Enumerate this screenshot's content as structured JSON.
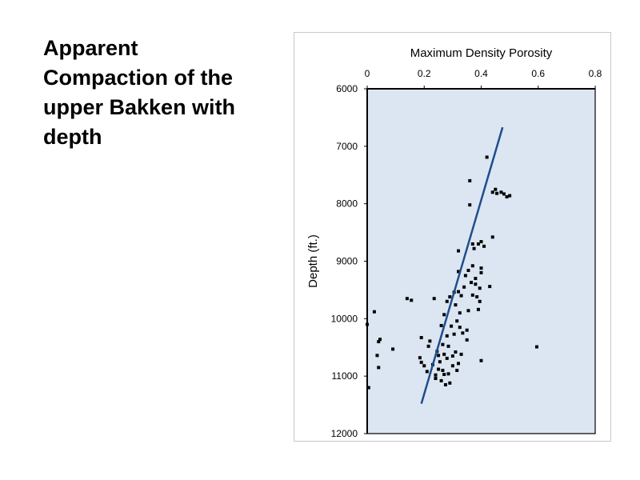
{
  "slide": {
    "title": "Apparent Compaction of the upper Bakken with depth"
  },
  "chart_data": {
    "type": "scatter",
    "title": "",
    "xlabel": "Maximum Density Porosity",
    "ylabel": "Depth (ft.)",
    "x_axis_position": "top",
    "y_axis_reversed": true,
    "xlim": [
      0,
      0.8
    ],
    "ylim": [
      6000,
      12000
    ],
    "x_ticks": [
      0,
      0.2,
      0.4,
      0.6,
      0.8
    ],
    "y_ticks": [
      6000,
      7000,
      8000,
      9000,
      10000,
      11000,
      12000
    ],
    "grid": false,
    "legend": "none",
    "colors": {
      "plot_background": "#dce6f2",
      "points": "#000000",
      "trend_line": "#1f4e8c"
    },
    "series": [
      {
        "kind": "points",
        "points": [
          [
            0.0,
            10100
          ],
          [
            0.005,
            11200
          ],
          [
            0.025,
            9880
          ],
          [
            0.035,
            10640
          ],
          [
            0.04,
            10400
          ],
          [
            0.04,
            10850
          ],
          [
            0.045,
            10360
          ],
          [
            0.09,
            10530
          ],
          [
            0.14,
            9650
          ],
          [
            0.155,
            9680
          ],
          [
            0.185,
            10680
          ],
          [
            0.19,
            10330
          ],
          [
            0.19,
            10760
          ],
          [
            0.2,
            10820
          ],
          [
            0.21,
            10920
          ],
          [
            0.215,
            10480
          ],
          [
            0.22,
            10390
          ],
          [
            0.23,
            10800
          ],
          [
            0.235,
            9650
          ],
          [
            0.24,
            10980
          ],
          [
            0.24,
            11040
          ],
          [
            0.245,
            10570
          ],
          [
            0.25,
            10640
          ],
          [
            0.25,
            10880
          ],
          [
            0.255,
            10750
          ],
          [
            0.26,
            10120
          ],
          [
            0.26,
            11080
          ],
          [
            0.265,
            10450
          ],
          [
            0.265,
            10900
          ],
          [
            0.27,
            9930
          ],
          [
            0.27,
            10620
          ],
          [
            0.27,
            10970
          ],
          [
            0.275,
            11150
          ],
          [
            0.28,
            9700
          ],
          [
            0.28,
            10300
          ],
          [
            0.28,
            10690
          ],
          [
            0.285,
            10480
          ],
          [
            0.285,
            10960
          ],
          [
            0.29,
            11120
          ],
          [
            0.29,
            9620
          ],
          [
            0.295,
            10130
          ],
          [
            0.3,
            10820
          ],
          [
            0.3,
            10650
          ],
          [
            0.305,
            9540
          ],
          [
            0.305,
            10270
          ],
          [
            0.31,
            10580
          ],
          [
            0.31,
            9760
          ],
          [
            0.315,
            10040
          ],
          [
            0.315,
            10900
          ],
          [
            0.32,
            9530
          ],
          [
            0.32,
            10780
          ],
          [
            0.32,
            8820
          ],
          [
            0.32,
            9180
          ],
          [
            0.325,
            9900
          ],
          [
            0.325,
            10150
          ],
          [
            0.33,
            9600
          ],
          [
            0.33,
            10620
          ],
          [
            0.335,
            10250
          ],
          [
            0.34,
            9450
          ],
          [
            0.345,
            9250
          ],
          [
            0.35,
            10370
          ],
          [
            0.35,
            10200
          ],
          [
            0.355,
            9860
          ],
          [
            0.355,
            9160
          ],
          [
            0.36,
            8020
          ],
          [
            0.36,
            7600
          ],
          [
            0.365,
            9370
          ],
          [
            0.37,
            8700
          ],
          [
            0.37,
            9080
          ],
          [
            0.37,
            9590
          ],
          [
            0.375,
            8780
          ],
          [
            0.38,
            9400
          ],
          [
            0.38,
            9300
          ],
          [
            0.385,
            9620
          ],
          [
            0.39,
            8700
          ],
          [
            0.39,
            9840
          ],
          [
            0.395,
            9700
          ],
          [
            0.395,
            9470
          ],
          [
            0.4,
            9200
          ],
          [
            0.4,
            8660
          ],
          [
            0.4,
            9120
          ],
          [
            0.4,
            10730
          ],
          [
            0.41,
            8740
          ],
          [
            0.42,
            7190
          ],
          [
            0.43,
            9440
          ],
          [
            0.44,
            8580
          ],
          [
            0.44,
            7800
          ],
          [
            0.45,
            7750
          ],
          [
            0.455,
            7820
          ],
          [
            0.47,
            7800
          ],
          [
            0.48,
            7830
          ],
          [
            0.49,
            7880
          ],
          [
            0.5,
            7860
          ],
          [
            0.595,
            10490
          ]
        ]
      },
      {
        "kind": "trend-line",
        "points": [
          [
            0.19,
            11480
          ],
          [
            0.475,
            6670
          ]
        ]
      }
    ]
  }
}
